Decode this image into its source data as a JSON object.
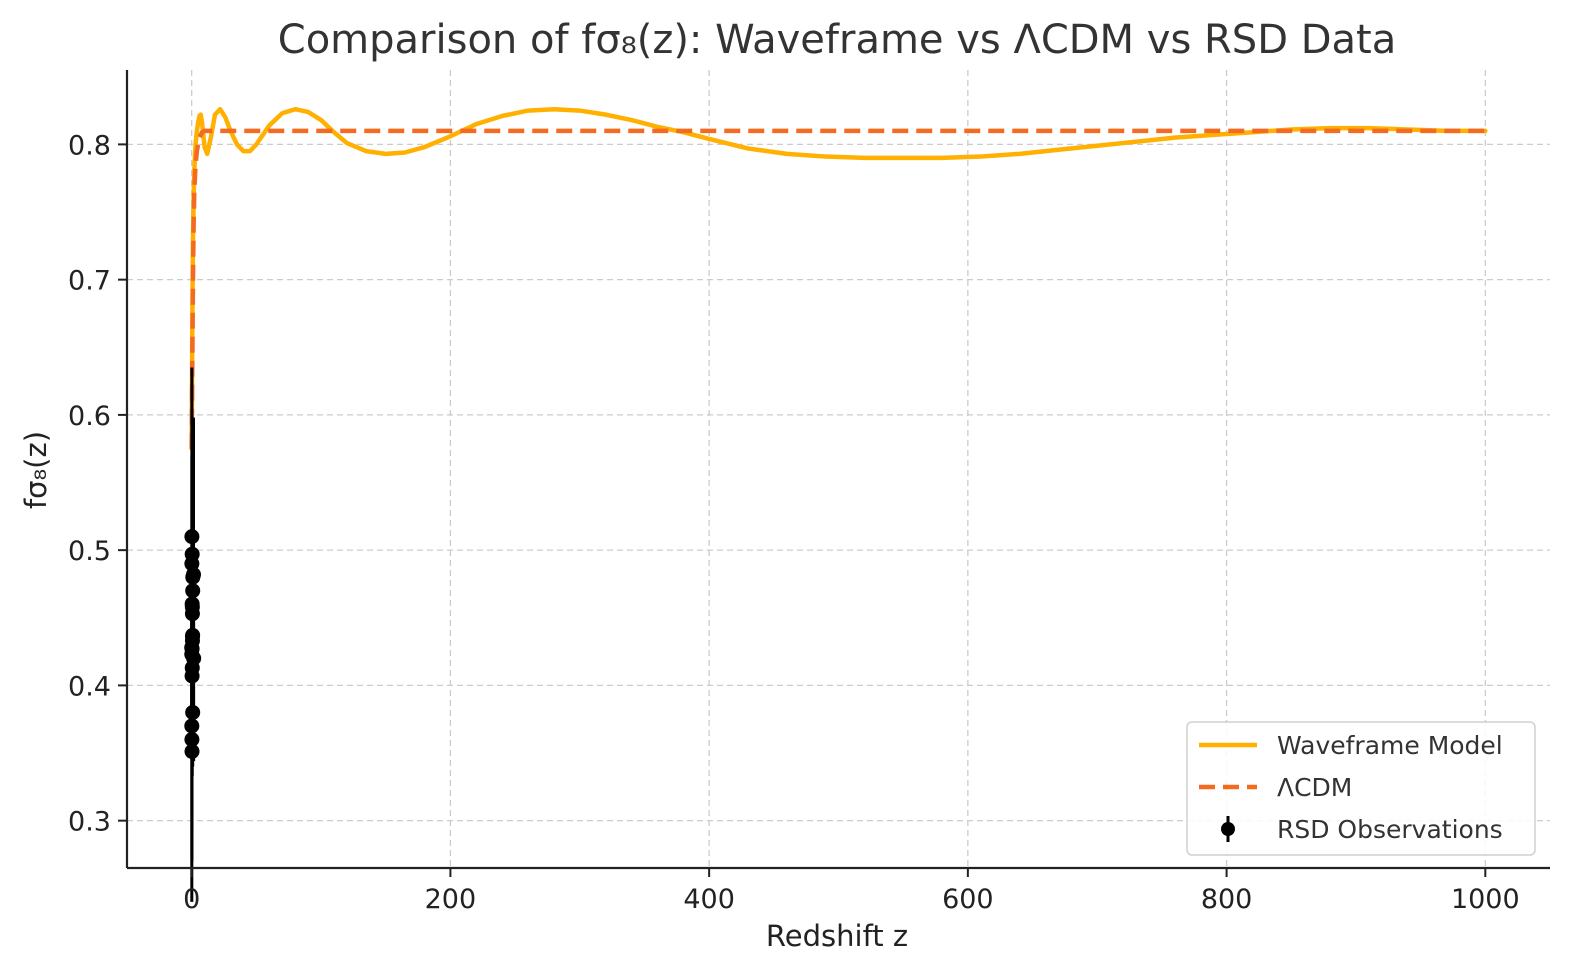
{
  "chart_data": {
    "type": "line",
    "title": "Comparison of fσ₈(z): Waveframe vs ΛCDM vs RSD Data",
    "xlabel": "Redshift z",
    "ylabel": "fσ₈(z)",
    "xlim": [
      -50,
      1050
    ],
    "ylim": [
      0.265,
      0.855
    ],
    "x_ticks": [
      0,
      200,
      400,
      600,
      800,
      1000
    ],
    "x_tick_labels": [
      "0",
      "200",
      "400",
      "600",
      "800",
      "1000"
    ],
    "y_ticks": [
      0.3,
      0.4,
      0.5,
      0.6,
      0.7,
      0.8
    ],
    "y_tick_labels": [
      "0.3",
      "0.4",
      "0.5",
      "0.6",
      "0.7",
      "0.8"
    ],
    "grid": true,
    "legend_position": "bottom-right",
    "colors": {
      "waveframe": "#ffb000",
      "lcdm": "#f26b21",
      "rsd": "#000000"
    },
    "series": [
      {
        "name": "Waveframe Model",
        "style": "solid",
        "color": "#ffb000",
        "x": [
          0,
          0.5,
          1,
          1.5,
          2,
          3,
          4,
          5,
          6,
          7,
          8,
          10,
          12,
          15,
          18,
          22,
          26,
          30,
          35,
          40,
          45,
          50,
          60,
          70,
          80,
          90,
          100,
          110,
          120,
          135,
          150,
          165,
          180,
          200,
          220,
          240,
          260,
          280,
          300,
          320,
          340,
          360,
          380,
          400,
          430,
          460,
          490,
          520,
          550,
          580,
          610,
          640,
          670,
          700,
          730,
          760,
          790,
          820,
          850,
          880,
          910,
          940,
          970,
          1000
        ],
        "y": [
          0.575,
          0.67,
          0.73,
          0.76,
          0.78,
          0.8,
          0.81,
          0.816,
          0.821,
          0.822,
          0.816,
          0.798,
          0.793,
          0.806,
          0.822,
          0.826,
          0.82,
          0.81,
          0.8,
          0.795,
          0.795,
          0.8,
          0.814,
          0.823,
          0.826,
          0.824,
          0.818,
          0.809,
          0.801,
          0.795,
          0.793,
          0.794,
          0.798,
          0.806,
          0.815,
          0.821,
          0.825,
          0.826,
          0.825,
          0.822,
          0.818,
          0.813,
          0.809,
          0.804,
          0.797,
          0.793,
          0.791,
          0.79,
          0.79,
          0.79,
          0.791,
          0.793,
          0.796,
          0.799,
          0.802,
          0.805,
          0.807,
          0.809,
          0.811,
          0.812,
          0.812,
          0.811,
          0.81,
          0.81
        ]
      },
      {
        "name": "ΛCDM",
        "style": "dashed",
        "color": "#f26b21",
        "x": [
          0,
          0.5,
          1,
          1.5,
          2,
          3,
          4,
          5,
          6,
          8,
          10,
          20,
          50,
          100,
          200,
          400,
          600,
          800,
          1000
        ],
        "y": [
          0.575,
          0.64,
          0.7,
          0.74,
          0.765,
          0.785,
          0.795,
          0.8,
          0.805,
          0.809,
          0.81,
          0.81,
          0.81,
          0.81,
          0.81,
          0.81,
          0.81,
          0.81,
          0.81
        ]
      },
      {
        "name": "RSD Observations",
        "type": "errorbar",
        "color": "#000000",
        "points": [
          {
            "x": 0.02,
            "y": 0.428,
            "err": 0.0465
          },
          {
            "x": 0.067,
            "y": 0.423,
            "err": 0.055
          },
          {
            "x": 0.1,
            "y": 0.37,
            "err": 0.13
          },
          {
            "x": 0.15,
            "y": 0.49,
            "err": 0.145
          },
          {
            "x": 0.17,
            "y": 0.51,
            "err": 0.06
          },
          {
            "x": 0.18,
            "y": 0.36,
            "err": 0.09
          },
          {
            "x": 0.25,
            "y": 0.3512,
            "err": 0.0583
          },
          {
            "x": 0.3,
            "y": 0.407,
            "err": 0.055
          },
          {
            "x": 0.32,
            "y": 0.427,
            "err": 0.056
          },
          {
            "x": 0.37,
            "y": 0.4602,
            "err": 0.0378
          },
          {
            "x": 0.38,
            "y": 0.497,
            "err": 0.045
          },
          {
            "x": 0.44,
            "y": 0.413,
            "err": 0.08
          },
          {
            "x": 0.51,
            "y": 0.458,
            "err": 0.038
          },
          {
            "x": 0.57,
            "y": 0.453,
            "err": 0.022
          },
          {
            "x": 0.6,
            "y": 0.433,
            "err": 0.067
          },
          {
            "x": 0.61,
            "y": 0.436,
            "err": 0.034
          },
          {
            "x": 0.73,
            "y": 0.437,
            "err": 0.072
          },
          {
            "x": 0.78,
            "y": 0.38,
            "err": 0.04
          },
          {
            "x": 0.8,
            "y": 0.47,
            "err": 0.08
          },
          {
            "x": 0.86,
            "y": 0.48,
            "err": 0.1
          },
          {
            "x": 1.4,
            "y": 0.482,
            "err": 0.116
          },
          {
            "x": 1.52,
            "y": 0.42,
            "err": 0.076
          }
        ]
      }
    ]
  }
}
